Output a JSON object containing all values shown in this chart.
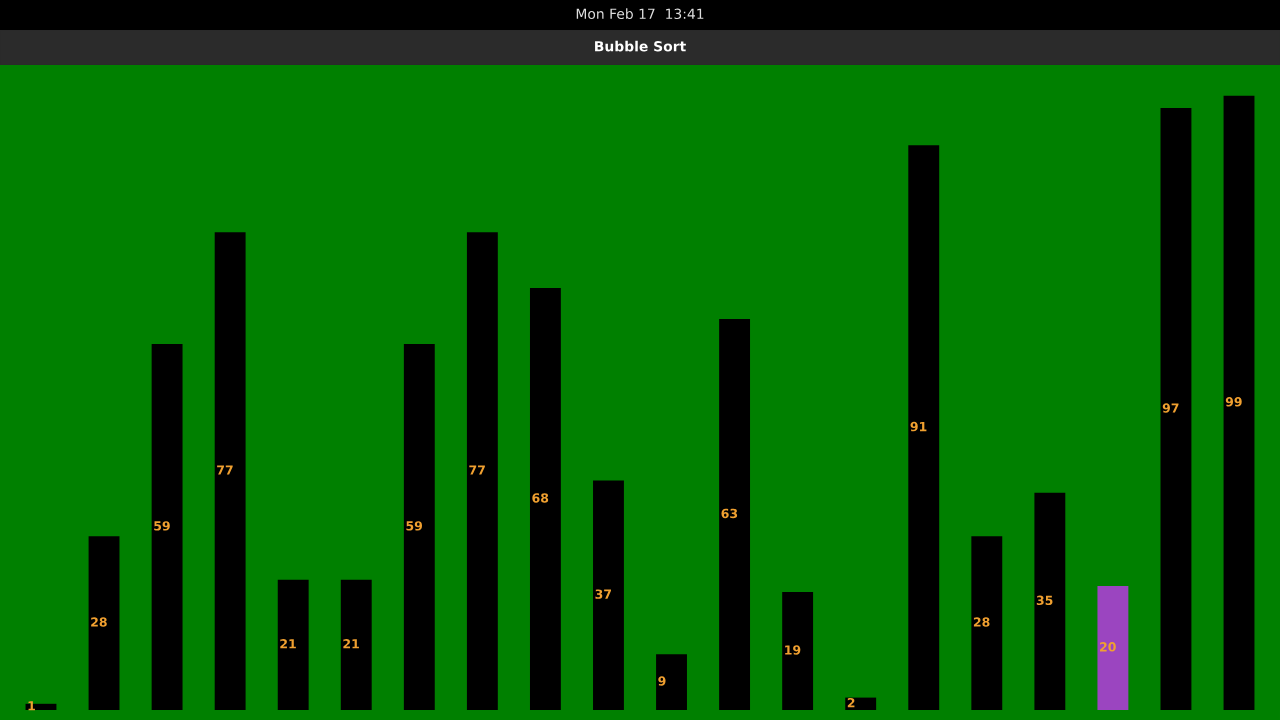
{
  "chart_data": {
    "type": "bar",
    "title": "Bubble Sort",
    "annotations": [
      "Mon Feb 17  13:41"
    ],
    "categories": [
      null,
      null,
      null,
      null,
      null,
      null,
      null,
      null,
      null,
      null,
      null,
      null,
      null,
      null,
      null,
      null,
      null,
      null,
      null,
      null
    ],
    "values": [
      1,
      28,
      59,
      77,
      21,
      21,
      59,
      77,
      68,
      37,
      9,
      63,
      19,
      2,
      91,
      28,
      35,
      20,
      97,
      99
    ],
    "colors": [
      "#000000",
      "#000000",
      "#000000",
      "#000000",
      "#000000",
      "#000000",
      "#000000",
      "#000000",
      "#000000",
      "#000000",
      "#000000",
      "#000000",
      "#000000",
      "#000000",
      "#000000",
      "#000000",
      "#000000",
      "#9b45c0",
      "#000000",
      "#000000"
    ],
    "data_labels": true
  }
}
